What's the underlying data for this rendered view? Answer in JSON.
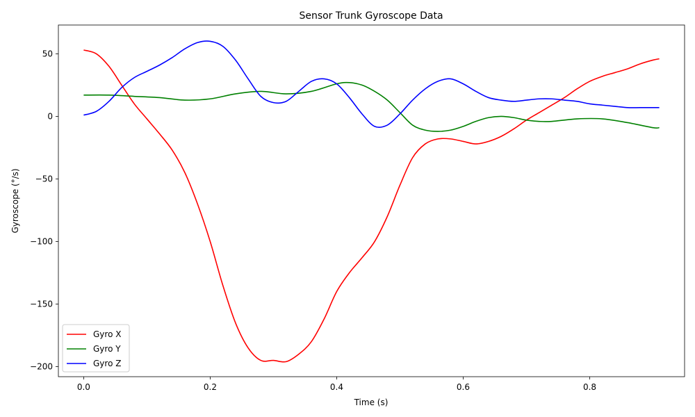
{
  "chart_data": {
    "type": "line",
    "title": "Sensor Trunk Gyroscope Data",
    "xlabel": "Time (s)",
    "ylabel": "Gyroscope (°/s)",
    "xlim": [
      -0.04,
      0.95
    ],
    "ylim": [
      -208,
      73
    ],
    "xticks": [
      0.0,
      0.2,
      0.4,
      0.6,
      0.8
    ],
    "xtick_labels": [
      "0.0",
      "0.2",
      "0.4",
      "0.6",
      "0.8"
    ],
    "yticks": [
      50,
      0,
      -50,
      -100,
      -150,
      -200
    ],
    "ytick_labels": [
      "50",
      "0",
      "−50",
      "−100",
      "−150",
      "−200"
    ],
    "grid": false,
    "legend_position": "lower-left",
    "series": [
      {
        "name": "Gyro X",
        "color": "#ff0000",
        "x": [
          0.0,
          0.02,
          0.04,
          0.06,
          0.08,
          0.1,
          0.12,
          0.14,
          0.16,
          0.18,
          0.2,
          0.22,
          0.24,
          0.26,
          0.28,
          0.3,
          0.32,
          0.34,
          0.36,
          0.38,
          0.4,
          0.42,
          0.44,
          0.46,
          0.48,
          0.5,
          0.52,
          0.54,
          0.56,
          0.58,
          0.6,
          0.62,
          0.64,
          0.66,
          0.68,
          0.7,
          0.72,
          0.74,
          0.76,
          0.78,
          0.8,
          0.82,
          0.84,
          0.86,
          0.88,
          0.9,
          0.91
        ],
        "y": [
          53,
          50,
          40,
          25,
          10,
          -2,
          -14,
          -27,
          -45,
          -70,
          -100,
          -135,
          -165,
          -185,
          -195,
          -195,
          -196,
          -190,
          -180,
          -162,
          -140,
          -125,
          -113,
          -100,
          -80,
          -55,
          -33,
          -22,
          -18,
          -18,
          -20,
          -22,
          -20,
          -16,
          -10,
          -3,
          3,
          9,
          15,
          22,
          28,
          32,
          35,
          38,
          42,
          45,
          46
        ]
      },
      {
        "name": "Gyro Y",
        "color": "#008000",
        "x": [
          0.0,
          0.04,
          0.08,
          0.12,
          0.16,
          0.2,
          0.24,
          0.28,
          0.32,
          0.36,
          0.4,
          0.42,
          0.44,
          0.46,
          0.48,
          0.5,
          0.52,
          0.54,
          0.56,
          0.58,
          0.6,
          0.62,
          0.64,
          0.66,
          0.68,
          0.7,
          0.72,
          0.74,
          0.78,
          0.82,
          0.86,
          0.9,
          0.91
        ],
        "y": [
          17,
          17,
          16,
          15,
          13,
          14,
          18,
          20,
          18,
          20,
          26,
          27,
          25,
          20,
          13,
          3,
          -7,
          -11,
          -12,
          -11,
          -8,
          -4,
          -1,
          0,
          -1,
          -3,
          -4,
          -4,
          -2,
          -2,
          -5,
          -9,
          -9
        ]
      },
      {
        "name": "Gyro Z",
        "color": "#0000ff",
        "x": [
          0.0,
          0.02,
          0.04,
          0.06,
          0.08,
          0.1,
          0.12,
          0.14,
          0.16,
          0.18,
          0.2,
          0.22,
          0.24,
          0.26,
          0.28,
          0.3,
          0.32,
          0.34,
          0.36,
          0.38,
          0.4,
          0.42,
          0.44,
          0.46,
          0.48,
          0.5,
          0.52,
          0.54,
          0.56,
          0.58,
          0.6,
          0.62,
          0.64,
          0.66,
          0.68,
          0.7,
          0.72,
          0.74,
          0.76,
          0.78,
          0.8,
          0.82,
          0.84,
          0.86,
          0.88,
          0.9,
          0.91
        ],
        "y": [
          1,
          4,
          12,
          23,
          31,
          36,
          41,
          47,
          54,
          59,
          60,
          56,
          45,
          30,
          16,
          11,
          12,
          20,
          28,
          30,
          26,
          15,
          2,
          -8,
          -7,
          2,
          13,
          22,
          28,
          30,
          26,
          20,
          15,
          13,
          12,
          13,
          14,
          14,
          13,
          12,
          10,
          9,
          8,
          7,
          7,
          7,
          7
        ]
      }
    ]
  }
}
